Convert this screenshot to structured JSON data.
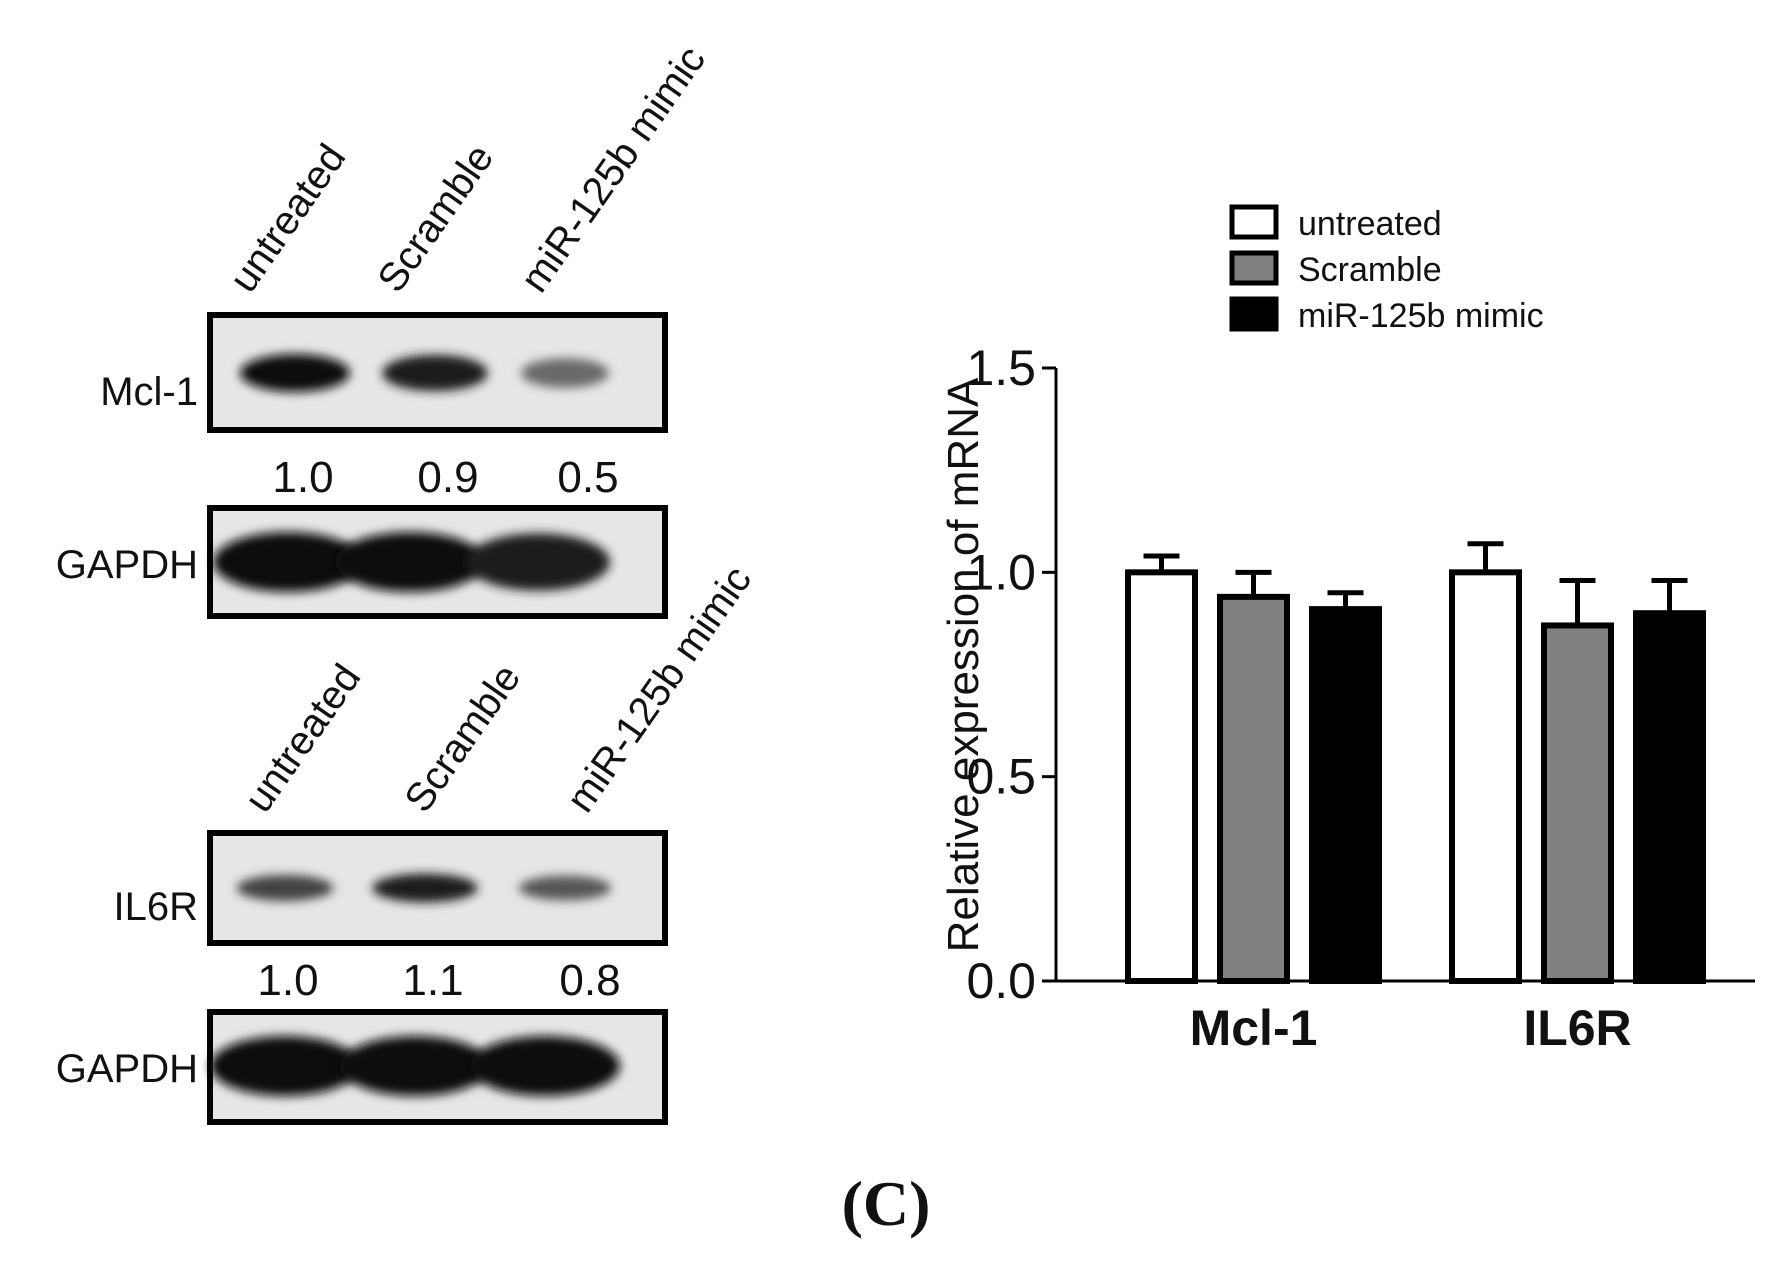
{
  "panel_label": "(C)",
  "blots": [
    {
      "lanes": [
        "untreated",
        "Scramble",
        "miR-125b mimic"
      ],
      "target": {
        "name": "Mcl-1",
        "quant": [
          "1.0",
          "0.9",
          "0.5"
        ],
        "band_intensity": [
          1.0,
          0.9,
          0.5
        ]
      },
      "control": {
        "name": "GAPDH",
        "band_intensity": [
          1.0,
          1.0,
          0.9
        ]
      }
    },
    {
      "lanes": [
        "untreated",
        "Scramble",
        "miR-125b mimic"
      ],
      "target": {
        "name": "IL6R",
        "quant": [
          "1.0",
          "1.1",
          "0.8"
        ],
        "band_intensity": [
          0.7,
          0.9,
          0.6
        ]
      },
      "control": {
        "name": "GAPDH",
        "band_intensity": [
          1.0,
          1.0,
          1.0
        ]
      }
    }
  ],
  "chart_data": {
    "type": "bar",
    "title": "",
    "xlabel": "",
    "ylabel": "Relative expression of mRNA",
    "ylim": [
      0,
      1.5
    ],
    "yticks": [
      0.0,
      0.5,
      1.0,
      1.5
    ],
    "ytick_labels": [
      "0.0",
      "0.5",
      "1.0",
      "1.5"
    ],
    "grid": false,
    "legend_position": "top-center",
    "categories": [
      "Mcl-1",
      "IL6R"
    ],
    "series": [
      {
        "name": "untreated",
        "color": "#ffffff",
        "values": [
          1.0,
          1.0
        ],
        "errors": [
          0.04,
          0.07
        ]
      },
      {
        "name": "Scramble",
        "color": "#808080",
        "values": [
          0.94,
          0.87
        ],
        "errors": [
          0.06,
          0.11
        ]
      },
      {
        "name": "miR-125b mimic",
        "color": "#000000",
        "values": [
          0.91,
          0.9
        ],
        "errors": [
          0.04,
          0.08
        ]
      }
    ]
  }
}
